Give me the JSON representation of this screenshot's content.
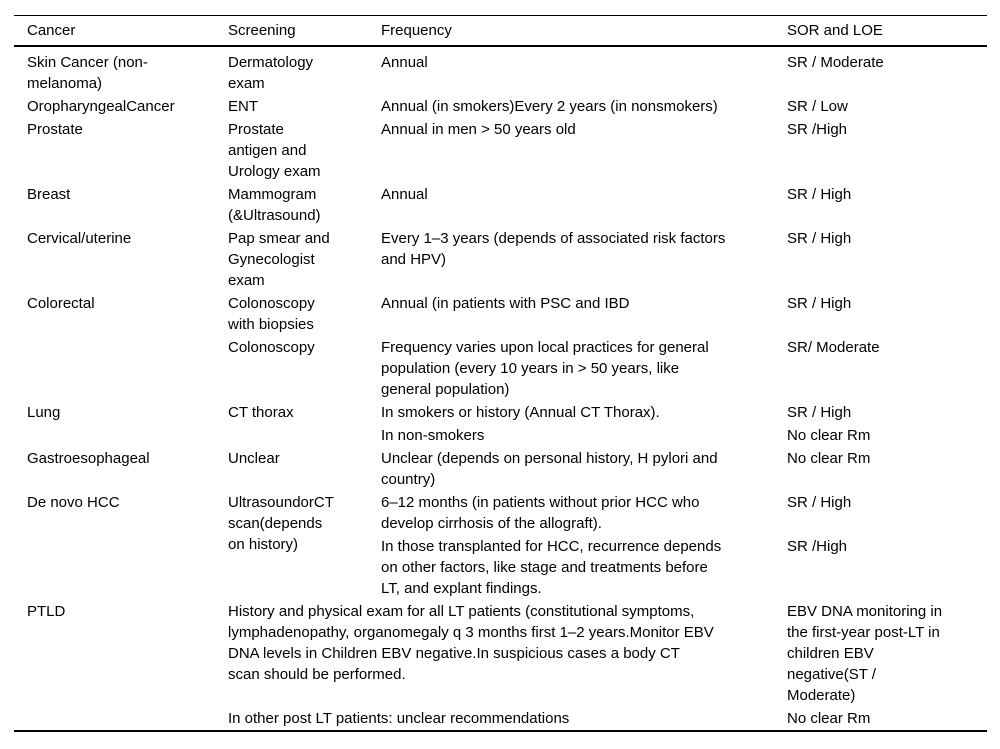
{
  "table": {
    "header": {
      "cancer": "Cancer",
      "screening": "Screening",
      "frequency": "Frequency",
      "sor": "SOR and LOE"
    },
    "rows": [
      {
        "cancer": "Skin Cancer (non-\nmelanoma)",
        "screening": "Dermatology\nexam",
        "frequency": "Annual",
        "sor": "SR / Moderate"
      },
      {
        "cancer": "OropharyngealCancer",
        "screening": "ENT",
        "frequency": "Annual (in smokers)Every 2 years (in nonsmokers)",
        "sor": "SR / Low"
      },
      {
        "cancer": "Prostate",
        "screening": "Prostate\nantigen and\nUrology exam",
        "frequency": "Annual in men > 50 years old",
        "sor": "SR /High"
      },
      {
        "cancer": "Breast",
        "screening": "Mammogram\n(&Ultrasound)",
        "frequency": "Annual",
        "sor": "SR / High"
      },
      {
        "cancer": "Cervical/uterine",
        "screening": "Pap smear and\nGynecologist\nexam",
        "frequency": "Every 1–3 years (depends of associated risk factors\nand HPV)",
        "sor": "SR / High"
      },
      {
        "cancer": "Colorectal",
        "screening": "Colonoscopy\nwith biopsies",
        "frequency": "Annual (in patients with PSC and IBD",
        "sor": "SR / High"
      },
      {
        "screening": "Colonoscopy",
        "frequency": "Frequency varies upon local practices for general\npopulation (every 10 years in > 50 years, like\ngeneral population)",
        "sor": "SR/ Moderate"
      },
      {
        "cancer": "Lung",
        "screening": "CT thorax",
        "frequency": "In smokers or history (Annual CT Thorax).",
        "sor": "SR / High"
      },
      {
        "frequency": "In non-smokers",
        "sor": "No clear Rm"
      },
      {
        "cancer": "Gastroesophageal",
        "screening": "Unclear",
        "frequency": "Unclear (depends on personal history, H pylori and\ncountry)",
        "sor": "No clear Rm"
      },
      {
        "cancer": "De novo HCC",
        "screening": "UltrasoundorCT\nscan(depends\non history)",
        "frequency": "6–12 months (in patients without prior HCC who\ndevelop cirrhosis of the allograft).",
        "sor": "SR / High"
      },
      {
        "frequency": "In those transplanted for HCC, recurrence depends\non other factors, like stage and treatments before\nLT, and explant findings.",
        "sor": "SR /High"
      },
      {
        "cancer": "PTLD",
        "screening_frequency": "History and physical exam for all LT patients (constitutional symptoms,\nlymphadenopathy, organomegaly q 3 months first 1–2 years.Monitor EBV\nDNA levels in Children EBV negative.In suspicious cases a body CT\nscan should be performed.",
        "sor": "EBV DNA monitoring in\nthe first-year post-LT in\nchildren EBV\nnegative(ST /\nModerate)"
      },
      {
        "screening_frequency": "In other post LT patients: unclear recommendations",
        "sor": "No clear Rm"
      }
    ]
  }
}
